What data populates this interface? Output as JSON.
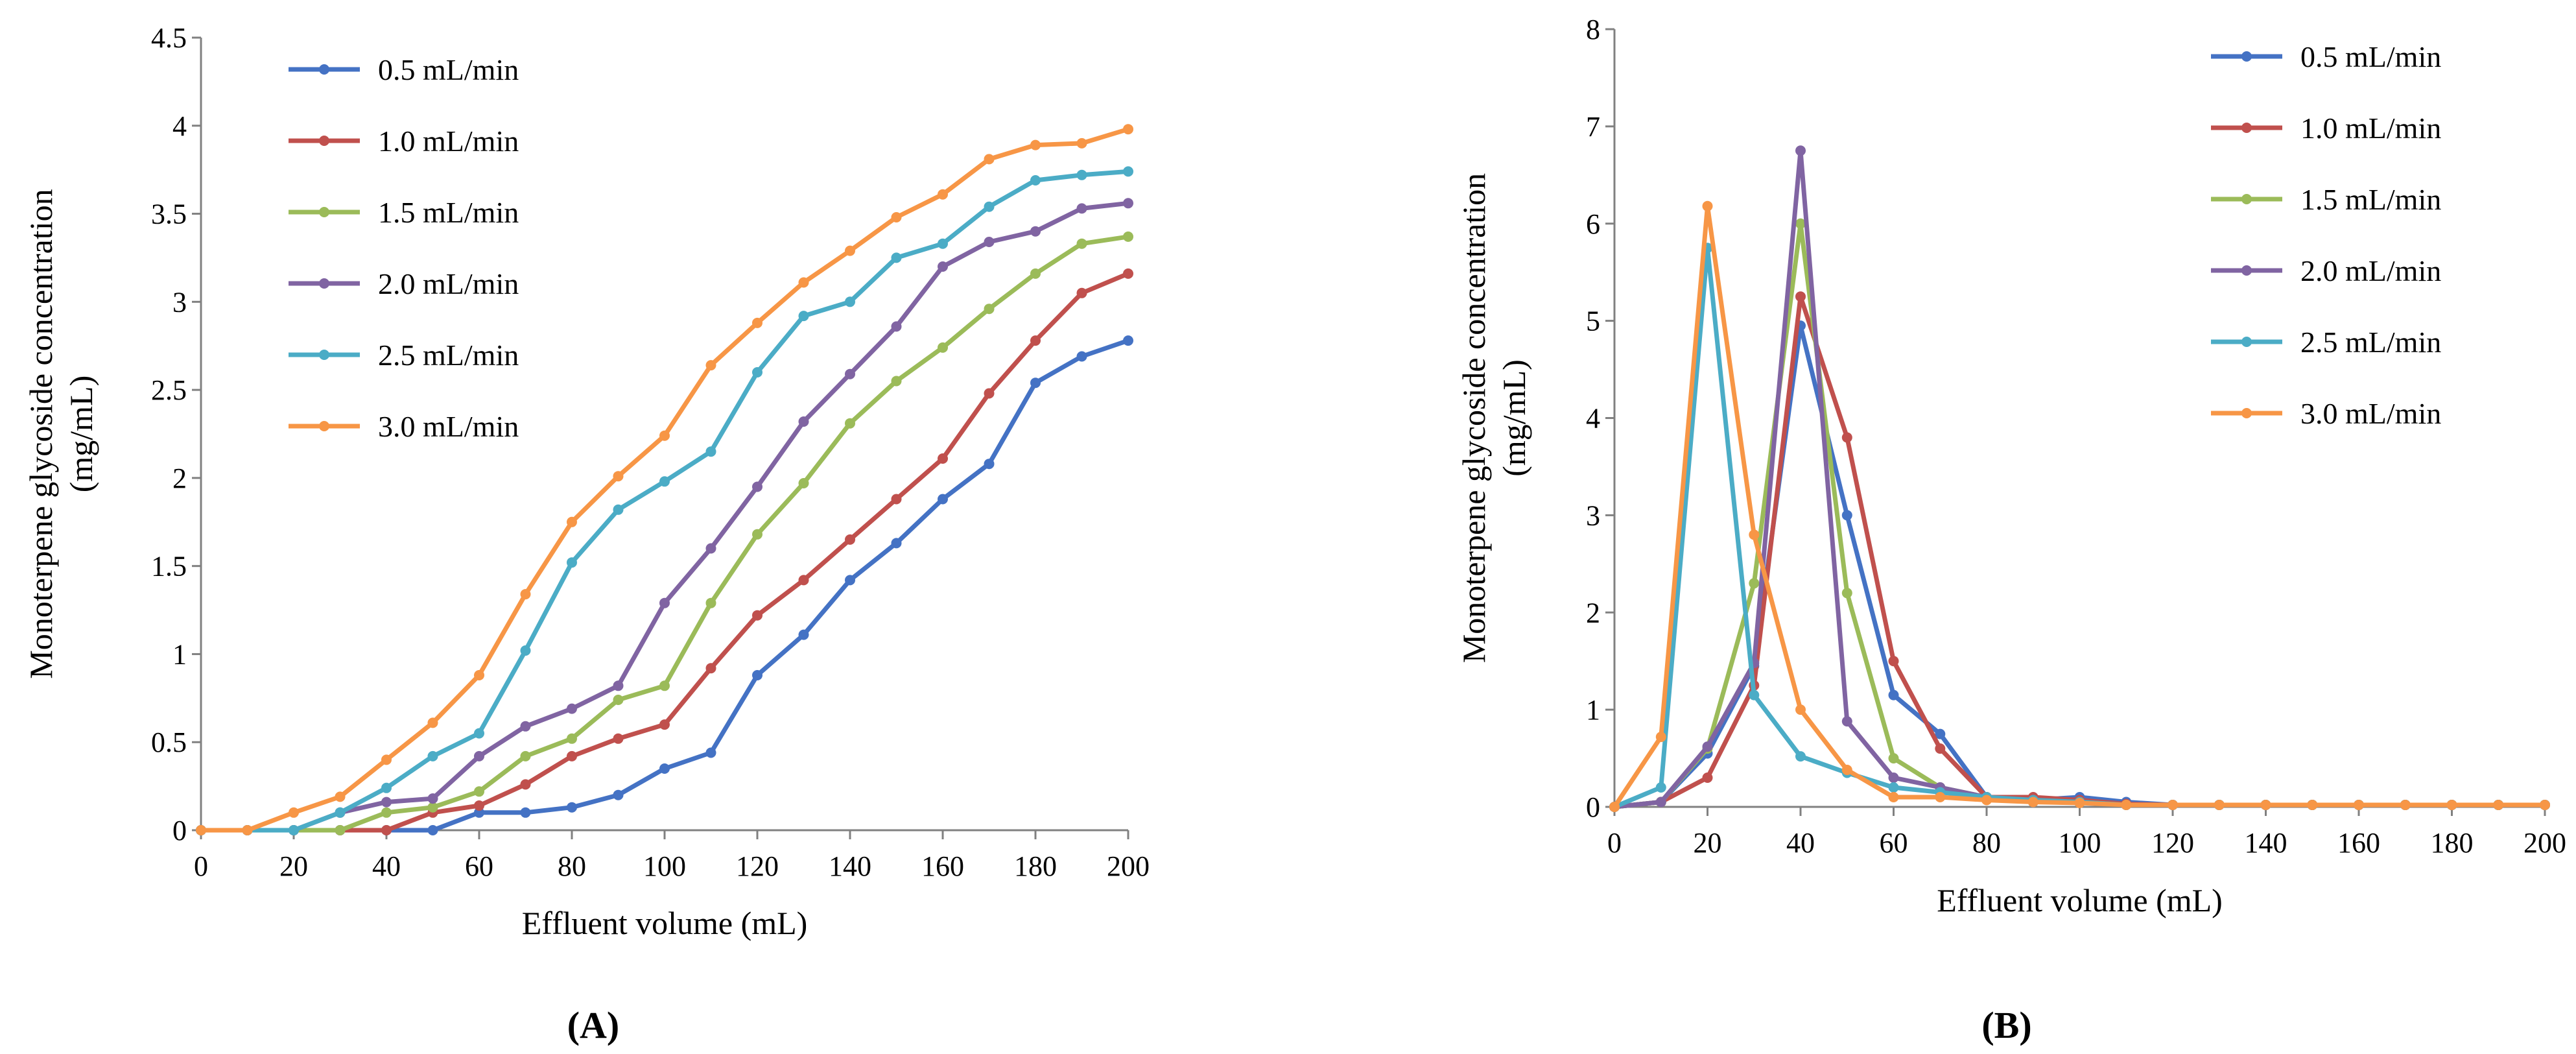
{
  "panel_labels": [
    "(A)",
    "(B)"
  ],
  "colors": {
    "0.5 mL/min": "#4472C4",
    "1.0 mL/min": "#C0504D",
    "1.5 mL/min": "#9BBB59",
    "2.0 mL/min": "#8064A2",
    "2.5 mL/min": "#4BACC6",
    "3.0 mL/min": "#F79646"
  },
  "chart_data": [
    {
      "type": "line",
      "panel": "(A)",
      "title": "",
      "xlabel": "Effluent volume (mL)",
      "ylabel": "Monoterpene glycoside concentration (mg/mL)",
      "xlim": [
        0,
        200
      ],
      "ylim": [
        0,
        4.5
      ],
      "x_ticks": [
        "0",
        "20",
        "40",
        "60",
        "80",
        "100",
        "120",
        "140",
        "160",
        "180",
        "200"
      ],
      "y_ticks": [
        "0",
        "0.5",
        "1",
        "1.5",
        "2",
        "2.5",
        "3",
        "3.5",
        "4",
        "4.5"
      ],
      "legend_position": "top-left",
      "x": [
        0,
        10,
        20,
        30,
        40,
        50,
        60,
        70,
        80,
        90,
        100,
        110,
        120,
        130,
        140,
        150,
        160,
        170,
        180,
        190,
        200
      ],
      "series": [
        {
          "name": "0.5 mL/min",
          "values": [
            0,
            0,
            0,
            0,
            0,
            0,
            0.1,
            0.1,
            0.13,
            0.2,
            0.35,
            0.44,
            0.88,
            1.11,
            1.42,
            1.63,
            1.88,
            2.08,
            2.54,
            2.69,
            2.78
          ]
        },
        {
          "name": "1.0 mL/min",
          "values": [
            0,
            0,
            0,
            0,
            0,
            0.1,
            0.14,
            0.26,
            0.42,
            0.52,
            0.6,
            0.92,
            1.22,
            1.42,
            1.65,
            1.88,
            2.11,
            2.48,
            2.78,
            3.05,
            3.16
          ]
        },
        {
          "name": "1.5 mL/min",
          "values": [
            0,
            0,
            0,
            0,
            0.1,
            0.13,
            0.22,
            0.42,
            0.52,
            0.74,
            0.82,
            1.29,
            1.68,
            1.97,
            2.31,
            2.55,
            2.74,
            2.96,
            3.16,
            3.33,
            3.37
          ]
        },
        {
          "name": "2.0 mL/min",
          "values": [
            0,
            0,
            0,
            0.1,
            0.16,
            0.18,
            0.42,
            0.59,
            0.69,
            0.82,
            1.29,
            1.6,
            1.95,
            2.32,
            2.59,
            2.86,
            3.2,
            3.34,
            3.4,
            3.53,
            3.56
          ]
        },
        {
          "name": "2.5 mL/min",
          "values": [
            0,
            0,
            0,
            0.1,
            0.24,
            0.42,
            0.55,
            1.02,
            1.52,
            1.82,
            1.98,
            2.15,
            2.6,
            2.92,
            3.0,
            3.25,
            3.33,
            3.54,
            3.69,
            3.72,
            3.74
          ]
        },
        {
          "name": "3.0 mL/min",
          "values": [
            0,
            0,
            0.1,
            0.19,
            0.4,
            0.61,
            0.88,
            1.34,
            1.75,
            2.01,
            2.24,
            2.64,
            2.88,
            3.11,
            3.29,
            3.48,
            3.61,
            3.81,
            3.89,
            3.9,
            3.98
          ]
        }
      ]
    },
    {
      "type": "line",
      "panel": "(B)",
      "title": "",
      "xlabel": "Effluent volume (mL)",
      "ylabel": "Monoterpene glycoside concentration (mg/mL)",
      "xlim": [
        0,
        200
      ],
      "ylim": [
        0,
        8
      ],
      "x_ticks": [
        "0",
        "20",
        "40",
        "60",
        "80",
        "100",
        "120",
        "140",
        "160",
        "180",
        "200"
      ],
      "y_ticks": [
        "0",
        "1",
        "2",
        "3",
        "4",
        "5",
        "6",
        "7",
        "8"
      ],
      "legend_position": "top-right",
      "x": [
        0,
        10,
        20,
        30,
        40,
        50,
        60,
        70,
        80,
        90,
        100,
        110,
        120,
        130,
        140,
        150,
        160,
        170,
        180,
        190,
        200
      ],
      "series": [
        {
          "name": "0.5 mL/min",
          "values": [
            0,
            0.05,
            0.55,
            1.45,
            4.95,
            3.0,
            1.15,
            0.75,
            0.1,
            0.07,
            0.1,
            0.05,
            0.02,
            0.02,
            0.02,
            0.02,
            0.02,
            0.02,
            0.02,
            0.02,
            0.02
          ]
        },
        {
          "name": "1.0 mL/min",
          "values": [
            0,
            0.05,
            0.3,
            1.25,
            5.25,
            3.8,
            1.5,
            0.6,
            0.1,
            0.1,
            0.07,
            0.03,
            0.02,
            0.02,
            0.02,
            0.02,
            0.02,
            0.02,
            0.02,
            0.02,
            0.02
          ]
        },
        {
          "name": "1.5 mL/min",
          "values": [
            0,
            0.05,
            0.6,
            2.3,
            6.0,
            2.2,
            0.5,
            0.2,
            0.1,
            0.05,
            0.05,
            0.02,
            0.02,
            0.02,
            0.02,
            0.02,
            0.02,
            0.02,
            0.02,
            0.02,
            0.02
          ]
        },
        {
          "name": "2.0 mL/min",
          "values": [
            0,
            0.05,
            0.62,
            1.48,
            6.75,
            0.88,
            0.3,
            0.2,
            0.1,
            0.05,
            0.05,
            0.02,
            0.02,
            0.02,
            0.02,
            0.02,
            0.02,
            0.02,
            0.02,
            0.02,
            0.02
          ]
        },
        {
          "name": "2.5 mL/min",
          "values": [
            0,
            0.2,
            5.75,
            1.15,
            0.52,
            0.35,
            0.2,
            0.15,
            0.1,
            0.07,
            0.05,
            0.02,
            0.02,
            0.02,
            0.02,
            0.02,
            0.02,
            0.02,
            0.02,
            0.02,
            0.02
          ]
        },
        {
          "name": "3.0 mL/min",
          "values": [
            0,
            0.72,
            6.18,
            2.8,
            1.0,
            0.38,
            0.1,
            0.1,
            0.07,
            0.05,
            0.04,
            0.02,
            0.02,
            0.02,
            0.02,
            0.02,
            0.02,
            0.02,
            0.02,
            0.02,
            0.02
          ]
        }
      ]
    }
  ]
}
